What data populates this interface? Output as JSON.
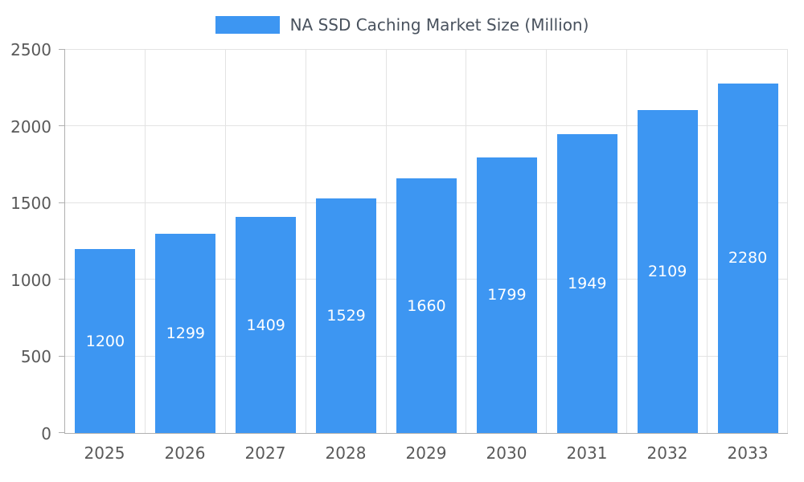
{
  "chart_data": {
    "type": "bar",
    "title": "NA SSD Caching Market Size (Million)",
    "categories": [
      "2025",
      "2026",
      "2027",
      "2028",
      "2029",
      "2030",
      "2031",
      "2032",
      "2033"
    ],
    "values": [
      1200,
      1299,
      1409,
      1529,
      1660,
      1799,
      1949,
      2109,
      2280
    ],
    "series": [
      {
        "name": "NA SSD Caching Market Size (Million)",
        "values": [
          1200,
          1299,
          1409,
          1529,
          1660,
          1799,
          1949,
          2109,
          2280
        ]
      }
    ],
    "xlabel": "",
    "ylabel": "",
    "ylim": [
      0,
      2500
    ],
    "yticks": [
      0,
      500,
      1000,
      1500,
      2000,
      2500
    ],
    "grid": true,
    "legend_position": "top",
    "value_labels": "inside-center"
  },
  "legend": {
    "label": "NA SSD Caching Market Size (Million)"
  },
  "colors": {
    "bar": "#3D96F2",
    "value_text": "#ffffff",
    "axis": "#b0b0b0",
    "grid": "#e3e3e3",
    "tick_text": "#595959",
    "title_text": "#49525e",
    "background": "#ffffff"
  }
}
